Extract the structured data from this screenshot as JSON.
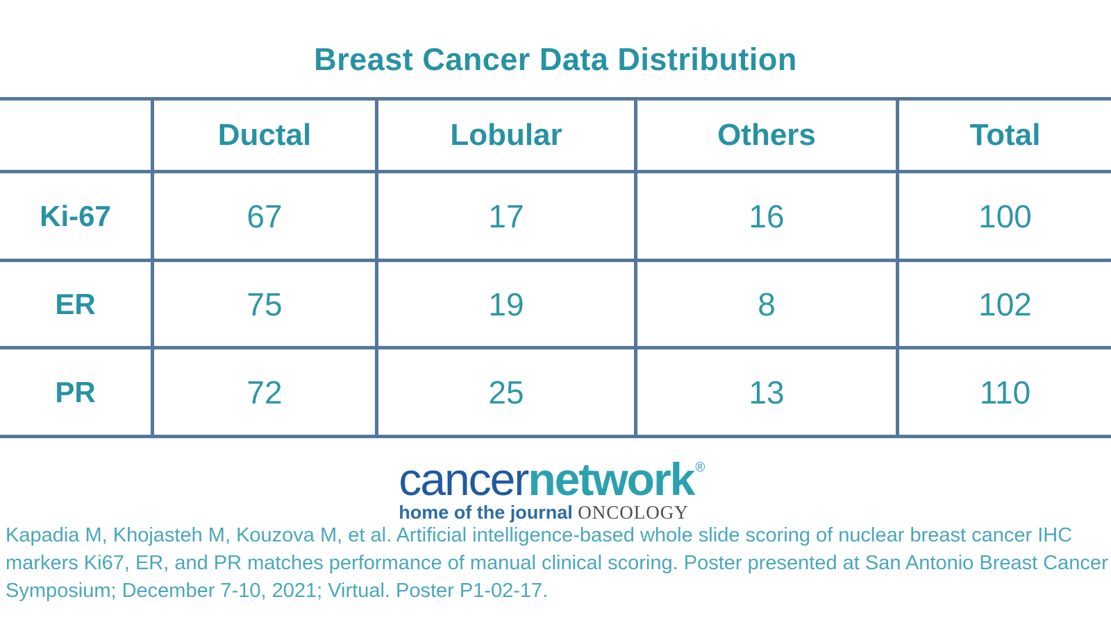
{
  "title": "Breast Cancer Data Distribution",
  "table": {
    "columns": [
      "",
      "Ductal",
      "Lobular",
      "Others",
      "Total"
    ],
    "rows": [
      {
        "label": "Ki-67",
        "values": [
          "67",
          "17",
          "16",
          "100"
        ]
      },
      {
        "label": "ER",
        "values": [
          "75",
          "19",
          "8",
          "102"
        ]
      },
      {
        "label": "PR",
        "values": [
          "72",
          "25",
          "13",
          "110"
        ]
      }
    ]
  },
  "chart_data": {
    "type": "table",
    "title": "Breast Cancer Data Distribution",
    "columns": [
      "Ductal",
      "Lobular",
      "Others",
      "Total"
    ],
    "row_labels": [
      "Ki-67",
      "ER",
      "PR"
    ],
    "values": [
      [
        67,
        17,
        16,
        100
      ],
      [
        75,
        19,
        8,
        102
      ],
      [
        72,
        25,
        13,
        110
      ]
    ]
  },
  "logo": {
    "part_cancer": "cancer",
    "part_network": "network",
    "registered_mark": "®",
    "tagline_prefix": "home of the journal",
    "tagline_journal": "ONCOLOGY"
  },
  "citation": {
    "line1": "Kapadia M, Khojasteh M, Kouzova M, et al. Artificial intelligence-based whole slide scoring of nuclear breast cancer IHC",
    "line2": "markers Ki67, ER, and PR matches performance of manual clinical scoring. Poster presented at San Antonio Breast Cancer",
    "line3": "Symposium; December 7-10, 2021; Virtual. Poster P1-02-17."
  },
  "colors": {
    "accent_teal": "#2792a4",
    "value_teal": "#2e96a6",
    "table_border": "#56779b",
    "logo_blue": "#205a9e",
    "logo_teal": "#2ba1b0",
    "tagline_blue": "#2c6ca5",
    "journal_gray": "#4d4d4d",
    "citation_teal": "#49a7bc",
    "background": "#ffffff"
  }
}
